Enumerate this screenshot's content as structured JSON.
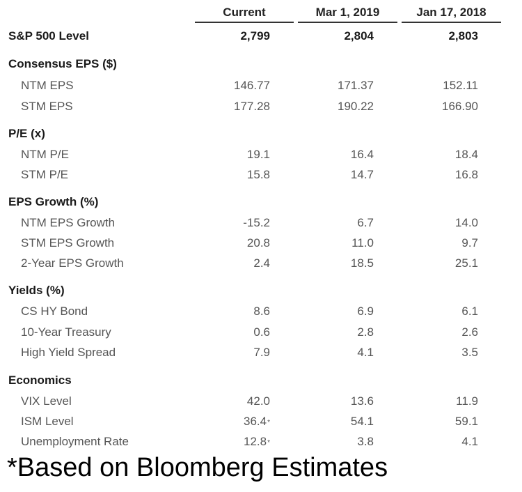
{
  "columns": [
    "Current",
    "Mar 1, 2019",
    "Jan 17, 2018"
  ],
  "headline": {
    "label": "S&P 500 Level",
    "values": [
      "2,799",
      "2,804",
      "2,803"
    ]
  },
  "sections": [
    {
      "title": "Consensus EPS ($)",
      "rows": [
        {
          "label": "NTM EPS",
          "values": [
            "146.77",
            "171.37",
            "152.11"
          ]
        },
        {
          "label": "STM EPS",
          "values": [
            "177.28",
            "190.22",
            "166.90"
          ]
        }
      ]
    },
    {
      "title": "P/E (x)",
      "rows": [
        {
          "label": "NTM P/E",
          "values": [
            "19.1",
            "16.4",
            "18.4"
          ]
        },
        {
          "label": "STM P/E",
          "values": [
            "15.8",
            "14.7",
            "16.8"
          ]
        }
      ]
    },
    {
      "title": "EPS Growth (%)",
      "rows": [
        {
          "label": "NTM EPS Growth",
          "values": [
            "-15.2",
            "6.7",
            "14.0"
          ]
        },
        {
          "label": "STM EPS Growth",
          "values": [
            "20.8",
            "11.0",
            "9.7"
          ]
        },
        {
          "label": "2-Year EPS Growth",
          "values": [
            "2.4",
            "18.5",
            "25.1"
          ]
        }
      ]
    },
    {
      "title": "Yields (%)",
      "rows": [
        {
          "label": "CS HY Bond",
          "values": [
            "8.6",
            "6.9",
            "6.1"
          ]
        },
        {
          "label": "10-Year Treasury",
          "values": [
            "0.6",
            "2.8",
            "2.6"
          ]
        },
        {
          "label": "High Yield Spread",
          "values": [
            "7.9",
            "4.1",
            "3.5"
          ]
        }
      ]
    },
    {
      "title": "Economics",
      "rows": [
        {
          "label": "VIX Level",
          "values": [
            "42.0",
            "13.6",
            "11.9"
          ]
        },
        {
          "label": "ISM Level",
          "values": [
            "36.4",
            "54.1",
            "59.1"
          ],
          "flags": [
            "*",
            "",
            ""
          ]
        },
        {
          "label": "Unemployment Rate",
          "values": [
            "12.8",
            "3.8",
            "4.1"
          ],
          "flags": [
            "*",
            "",
            ""
          ]
        }
      ]
    }
  ],
  "footnote": "*Based on Bloomberg Estimates"
}
